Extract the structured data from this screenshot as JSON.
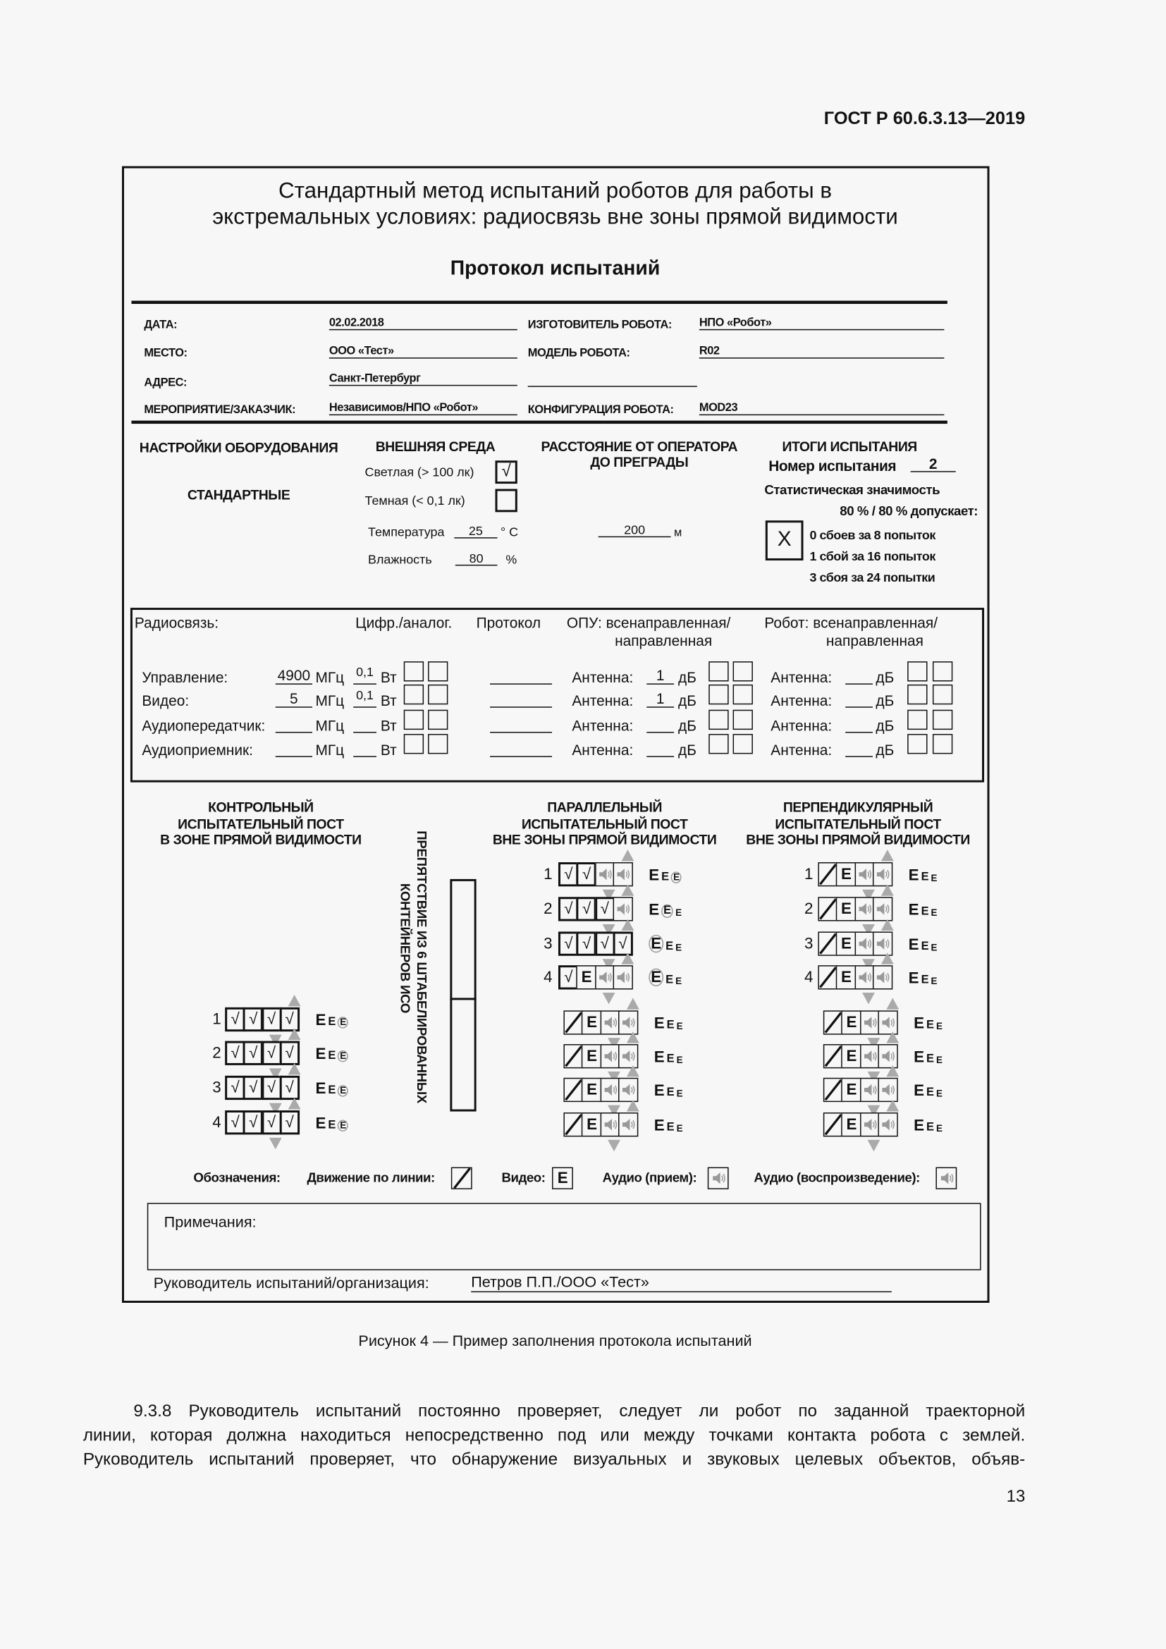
{
  "page_header": "ГОСТ Р 60.6.3.13—2019",
  "form": {
    "title_line1": "Стандартный метод испытаний роботов для работы в",
    "title_line2": "экстремальных условиях: радиосвязь вне зоны прямой видимости",
    "subtitle": "Протокол испытаний",
    "info": {
      "date_label": "ДАТА:",
      "date_value": "02.02.2018",
      "place_label": "МЕСТО:",
      "place_value": "ООО «Тест»",
      "address_label": "АДРЕС:",
      "address_value": "Санкт-Петербург",
      "event_label": "МЕРОПРИЯТИЕ/ЗАКАЗЧИК:",
      "event_value": "Независимов/НПО «Робот»",
      "maker_label": "ИЗГОТОВИТЕЛЬ РОБОТА:",
      "maker_value": "НПО «Робот»",
      "model_label": "МОДЕЛЬ РОБОТА:",
      "model_value": "R02",
      "config_label": "КОНФИГУРАЦИЯ РОБОТА:",
      "config_value": "MOD23"
    },
    "settings": {
      "title": "НАСТРОЙКИ ОБОРУДОВАНИЯ",
      "value": "СТАНДАРТНЫЕ"
    },
    "environment": {
      "title": "ВНЕШНЯЯ СРЕДА",
      "light_label": "Светлая (> 100 лк)",
      "light_checked": "√",
      "dark_label": "Темная (< 0,1 лк)",
      "dark_checked": "",
      "temp_label": "Температура",
      "temp_value": "25",
      "temp_unit": "° С",
      "humidity_label": "Влажность",
      "humidity_value": "80",
      "humidity_unit": "%"
    },
    "distance": {
      "title_line1": "РАССТОЯНИЕ ОТ ОПЕРАТОРА",
      "title_line2": "ДО ПРЕГРАДЫ",
      "value": "200",
      "unit": "м"
    },
    "results": {
      "title": "ИТОГИ ИСПЫТАНИЯ",
      "test_no_label": "Номер испытания",
      "test_no_value": "2",
      "stat_line1": "Статистическая значимость",
      "stat_line2": "80 % / 80 % допускает:",
      "mark": "X",
      "options": [
        "0 сбоев за 8 попыток",
        "1 сбой за 16 попыток",
        "3 сбоя за 24 попытки"
      ]
    },
    "radio": {
      "title": "Радиосвязь:",
      "col_digital": "Цифр./аналог.",
      "col_protocol": "Протокол",
      "col_opu_1": "ОПУ: всенаправленная/",
      "col_opu_2": "направленная",
      "col_robot_1": "Робот: всенаправленная/",
      "col_robot_2": "направленная",
      "mhz": "МГц",
      "w": "Вт",
      "antenna": "Антенна:",
      "db": "дБ",
      "rows": [
        {
          "label": "Управление:",
          "mhz": "4900",
          "w": "0,1",
          "protocol": "",
          "opu_db": "1",
          "robot_db": ""
        },
        {
          "label": "Видео:",
          "mhz": "5",
          "w": "0,1",
          "protocol": "",
          "opu_db": "1",
          "robot_db": ""
        },
        {
          "label": "Аудиопередатчик:",
          "mhz": "",
          "w": "",
          "protocol": "",
          "opu_db": "",
          "robot_db": ""
        },
        {
          "label": "Аудиоприемник:",
          "mhz": "",
          "w": "",
          "protocol": "",
          "opu_db": "",
          "robot_db": ""
        }
      ]
    },
    "stations": {
      "control": {
        "title": [
          "КОНТРОЛЬНЫЙ",
          "ИСПЫТАТЕЛЬНЫЙ ПОСТ",
          "В ЗОНЕ ПРЯМОЙ ВИДИМОСТИ"
        ],
        "rows": [
          {
            "n": "1",
            "cells": [
              "check",
              "check",
              "check",
              "check"
            ],
            "circled": [
              2
            ]
          },
          {
            "n": "2",
            "cells": [
              "check",
              "check",
              "check",
              "check"
            ],
            "circled": [
              2
            ]
          },
          {
            "n": "3",
            "cells": [
              "check",
              "check",
              "check",
              "check"
            ],
            "circled": [
              2
            ]
          },
          {
            "n": "4",
            "cells": [
              "check",
              "check",
              "check",
              "check"
            ],
            "circled": [
              2
            ]
          }
        ]
      },
      "parallel": {
        "title": [
          "ПАРАЛЛЕЛЬНЫЙ",
          "ИСПЫТАТЕЛЬНЫЙ ПОСТ",
          "ВНЕ ЗОНЫ ПРЯМОЙ ВИДИМОСТИ"
        ],
        "rows": [
          {
            "n": "1",
            "cells": [
              "check",
              "check",
              "audio-rx",
              "audio-play"
            ],
            "circled": [
              2
            ]
          },
          {
            "n": "2",
            "cells": [
              "check",
              "check",
              "check",
              "audio-play"
            ],
            "circled": [
              1
            ]
          },
          {
            "n": "3",
            "cells": [
              "check",
              "check",
              "check",
              "check"
            ],
            "circled": [
              0
            ]
          },
          {
            "n": "4",
            "cells": [
              "check",
              "video",
              "audio-rx",
              "audio-play"
            ],
            "circled": [
              0
            ]
          }
        ],
        "rows_lower": [
          {
            "n": "",
            "cells": [
              "line",
              "video",
              "audio-rx",
              "audio-play"
            ],
            "circled": []
          },
          {
            "n": "",
            "cells": [
              "line",
              "video",
              "audio-rx",
              "audio-play"
            ],
            "circled": []
          },
          {
            "n": "",
            "cells": [
              "line",
              "video",
              "audio-rx",
              "audio-play"
            ],
            "circled": []
          },
          {
            "n": "",
            "cells": [
              "line",
              "video",
              "audio-rx",
              "audio-play"
            ],
            "circled": []
          }
        ]
      },
      "perpendicular": {
        "title": [
          "ПЕРПЕНДИКУЛЯРНЫЙ",
          "ИСПЫТАТЕЛЬНЫЙ ПОСТ",
          "ВНЕ ЗОНЫ ПРЯМОЙ ВИДИМОСТИ"
        ],
        "rows": [
          {
            "n": "1",
            "cells": [
              "line",
              "video",
              "audio-rx",
              "audio-play"
            ],
            "circled": []
          },
          {
            "n": "2",
            "cells": [
              "line",
              "video",
              "audio-rx",
              "audio-play"
            ],
            "circled": []
          },
          {
            "n": "3",
            "cells": [
              "line",
              "video",
              "audio-rx",
              "audio-play"
            ],
            "circled": []
          },
          {
            "n": "4",
            "cells": [
              "line",
              "video",
              "audio-rx",
              "audio-play"
            ],
            "circled": []
          }
        ],
        "rows_lower": [
          {
            "n": "",
            "cells": [
              "line",
              "video",
              "audio-rx",
              "audio-play"
            ],
            "circled": []
          },
          {
            "n": "",
            "cells": [
              "line",
              "video",
              "audio-rx",
              "audio-play"
            ],
            "circled": []
          },
          {
            "n": "",
            "cells": [
              "line",
              "video",
              "audio-rx",
              "audio-play"
            ],
            "circled": []
          },
          {
            "n": "",
            "cells": [
              "line",
              "video",
              "audio-rx",
              "audio-play"
            ],
            "circled": []
          }
        ]
      },
      "obstacle_line1": "ПРЕПЯТСТВИЕ ИЗ 6 ШТАБЕЛИРОВАННЫХ",
      "obstacle_line2": "КОНТЕЙНЕРОВ ИСО",
      "check_glyph": "√",
      "video_glyph": "E",
      "mark_glyph": "E"
    },
    "legend": {
      "title": "Обозначения:",
      "line": "Движение по линии:",
      "video": "Видео:",
      "audio_rx": "Аудио (прием):",
      "audio_play": "Аудио (воспроизведение):"
    },
    "notes_label": "Примечания:",
    "supervisor_label": "Руководитель испытаний/организация:",
    "supervisor_value": "Петров П.П./ООО «Тест»"
  },
  "caption": "Рисунок 4 — Пример заполнения протокола испытаний",
  "paragraph": [
    "9.3.8 Руководитель испытаний постоянно проверяет, следует ли робот по заданной траекторной",
    "линии, которая должна находиться непосредственно под или между точками контакта робота с землей.",
    "Руководитель испытаний проверяет, что обнаружение визуальных и звуковых целевых объектов, объяв-"
  ],
  "page_number": "13",
  "colors": {
    "ink": "#111111",
    "icon_gray": "#999999",
    "paper": "#f7f7f7"
  }
}
